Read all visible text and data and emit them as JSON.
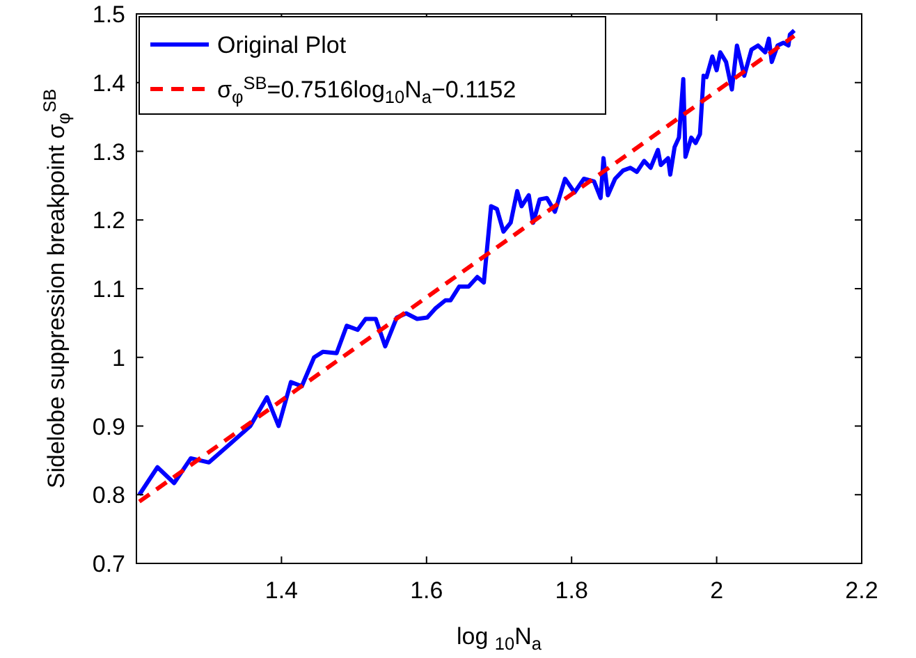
{
  "chart_data": {
    "type": "line",
    "xlabel": "log $_{10}$N$_{a}$",
    "ylabel": "Sidelobe suppression breakpoint σ$_{φ}$$^{SB}$",
    "xlim": [
      1.2,
      2.2
    ],
    "ylim": [
      0.7,
      1.5
    ],
    "xticks": [
      1.4,
      1.6,
      1.8,
      2,
      2.2
    ],
    "yticks": [
      0.7,
      0.8,
      0.9,
      1,
      1.1,
      1.2,
      1.3,
      1.4,
      1.5
    ],
    "grid": false,
    "legend": "top left",
    "series": [
      {
        "name": "Original Plot",
        "color": "#0000ff",
        "line_style": "solid",
        "x": [
          1.204,
          1.229,
          1.252,
          1.275,
          1.3,
          1.328,
          1.357,
          1.38,
          1.396,
          1.413,
          1.428,
          1.445,
          1.457,
          1.476,
          1.49,
          1.505,
          1.516,
          1.53,
          1.543,
          1.559,
          1.572,
          1.587,
          1.601,
          1.612,
          1.626,
          1.633,
          1.645,
          1.658,
          1.67,
          1.679,
          1.689,
          1.697,
          1.706,
          1.716,
          1.725,
          1.731,
          1.741,
          1.747,
          1.756,
          1.766,
          1.777,
          1.791,
          1.804,
          1.817,
          1.831,
          1.84,
          1.844,
          1.85,
          1.86,
          1.871,
          1.881,
          1.89,
          1.9,
          1.909,
          1.919,
          1.923,
          1.933,
          1.936,
          1.942,
          1.948,
          1.954,
          1.957,
          1.965,
          1.971,
          1.977,
          1.982,
          1.986,
          1.994,
          2.0,
          2.005,
          2.013,
          2.021,
          2.028,
          2.038,
          2.048,
          2.057,
          2.067,
          2.072,
          2.076,
          2.084,
          2.092,
          2.099,
          2.101,
          2.107
        ],
        "values": [
          0.8,
          0.84,
          0.817,
          0.853,
          0.847,
          0.873,
          0.9,
          0.942,
          0.9,
          0.964,
          0.958,
          1.0,
          1.008,
          1.006,
          1.046,
          1.04,
          1.056,
          1.056,
          1.016,
          1.058,
          1.064,
          1.056,
          1.058,
          1.071,
          1.083,
          1.083,
          1.103,
          1.103,
          1.117,
          1.109,
          1.22,
          1.216,
          1.183,
          1.196,
          1.242,
          1.22,
          1.236,
          1.196,
          1.23,
          1.232,
          1.212,
          1.26,
          1.24,
          1.26,
          1.256,
          1.232,
          1.29,
          1.236,
          1.26,
          1.272,
          1.276,
          1.27,
          1.286,
          1.276,
          1.302,
          1.28,
          1.29,
          1.266,
          1.306,
          1.32,
          1.405,
          1.292,
          1.32,
          1.312,
          1.325,
          1.41,
          1.408,
          1.438,
          1.418,
          1.444,
          1.43,
          1.39,
          1.454,
          1.41,
          1.448,
          1.454,
          1.444,
          1.464,
          1.43,
          1.454,
          1.458,
          1.454,
          1.47,
          1.476
        ]
      },
      {
        "name": "σ$_{φ}$$^{SB}$=0.7516log$_{10}$N$_{a}$−0.1152",
        "color": "#ff0000",
        "line_style": "dashed",
        "x": [
          1.204,
          2.107
        ],
        "values": [
          0.79,
          1.468
        ]
      }
    ]
  }
}
